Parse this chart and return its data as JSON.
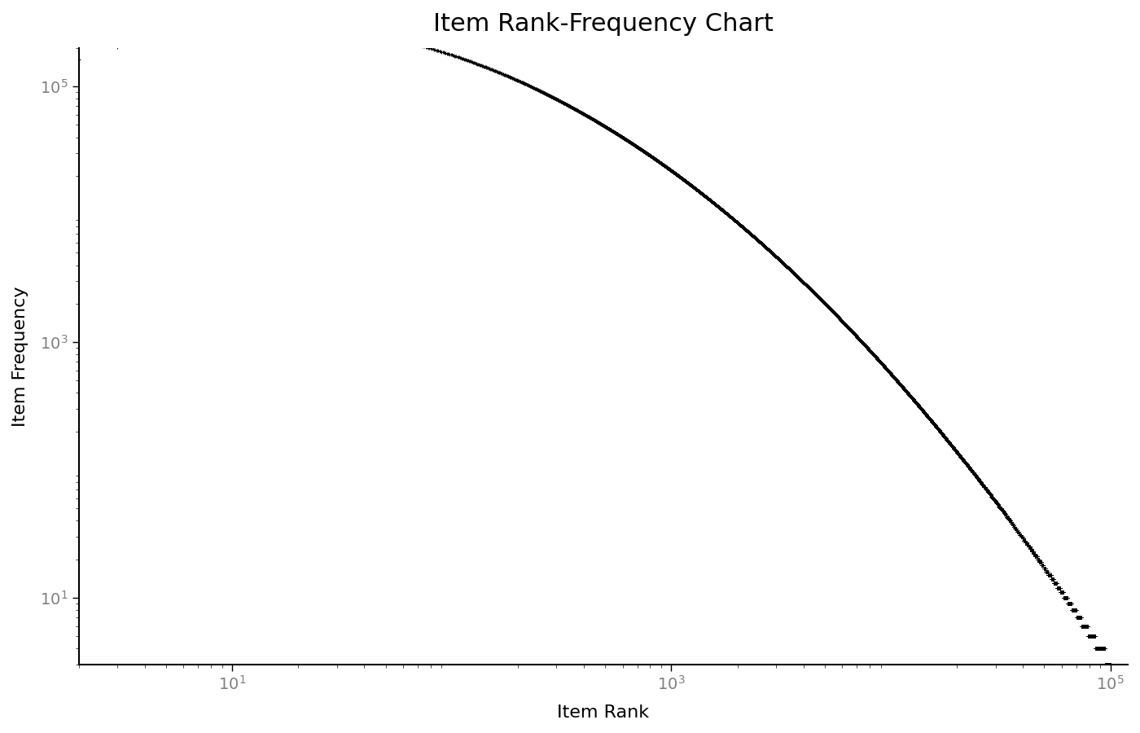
{
  "title": "Item Rank-Frequency Chart",
  "xlabel": "Item Rank",
  "ylabel": "Item Frequency",
  "xlim_log": [
    2,
    120000
  ],
  "ylim_log": [
    3,
    200000
  ],
  "marker": "+",
  "marker_color": "black",
  "marker_size": 3,
  "background_color": "white",
  "spine_color": "black",
  "tick_label_color": "#808080",
  "title_fontsize": 22,
  "axis_label_fontsize": 16,
  "n_items": 100000,
  "max_frequency": 100000,
  "min_frequency": 3
}
